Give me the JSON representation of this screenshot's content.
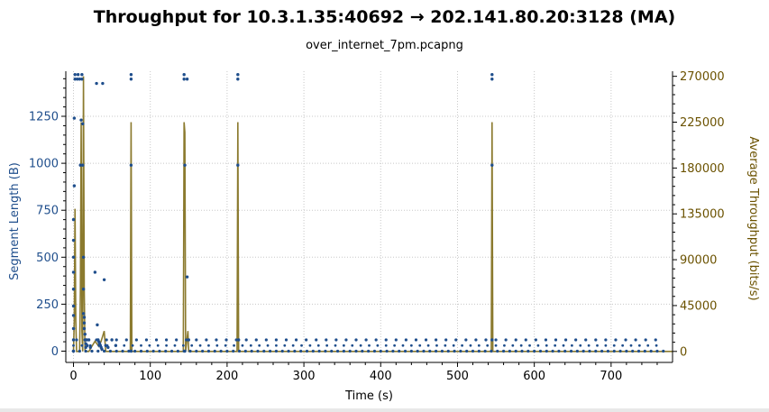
{
  "chart_data": {
    "type": "scatter",
    "title": "Throughput for 10.3.1.35:40692 → 202.141.80.20:3128 (MA)",
    "subtitle": "over_internet_7pm.pcapng",
    "xlabel": "Time (s)",
    "ylabel_left": "Segment Length (B)",
    "ylabel_right": "Average Throughput (bits/s)",
    "xlim": [
      -10,
      780
    ],
    "ylim_left": [
      -60,
      1490
    ],
    "ylim_right": [
      -10800,
      275000
    ],
    "x_ticks": [
      0,
      100,
      200,
      300,
      400,
      500,
      600,
      700
    ],
    "y_left_ticks": [
      0,
      250,
      500,
      750,
      1000,
      1250
    ],
    "y_right_ticks": [
      0,
      45000,
      90000,
      135000,
      180000,
      225000,
      270000
    ],
    "grid": true,
    "colors": {
      "segments": "#1f4e8c",
      "throughput": "#8b7a2e"
    },
    "series": [
      {
        "kind": "segments",
        "axis": "left",
        "points": [
          [
            0,
            0
          ],
          [
            0,
            60
          ],
          [
            0,
            120
          ],
          [
            0,
            190
          ],
          [
            0,
            240
          ],
          [
            0,
            330
          ],
          [
            0,
            420
          ],
          [
            0,
            500
          ],
          [
            0,
            590
          ],
          [
            0,
            700
          ],
          [
            1,
            880
          ],
          [
            1,
            1240
          ],
          [
            2,
            1448
          ],
          [
            2,
            1472
          ],
          [
            5,
            1448
          ],
          [
            6,
            1472
          ],
          [
            8,
            1448
          ],
          [
            9,
            990
          ],
          [
            10,
            1230
          ],
          [
            11,
            1448
          ],
          [
            11,
            1472
          ],
          [
            12,
            990
          ],
          [
            12,
            1210
          ],
          [
            13,
            500
          ],
          [
            13,
            330
          ],
          [
            13,
            200
          ],
          [
            14,
            180
          ],
          [
            14,
            150
          ],
          [
            14,
            120
          ],
          [
            15,
            90
          ],
          [
            15,
            60
          ],
          [
            16,
            40
          ],
          [
            16,
            20
          ],
          [
            17,
            60
          ],
          [
            18,
            30
          ],
          [
            20,
            60
          ],
          [
            22,
            20
          ],
          [
            28,
            420
          ],
          [
            30,
            1425
          ],
          [
            31,
            140
          ],
          [
            32,
            60
          ],
          [
            33,
            50
          ],
          [
            34,
            40
          ],
          [
            35,
            30
          ],
          [
            36,
            20
          ],
          [
            37,
            10
          ],
          [
            38,
            1425
          ],
          [
            40,
            380
          ],
          [
            42,
            30
          ],
          [
            45,
            20
          ],
          [
            50,
            60
          ],
          [
            55,
            30
          ],
          [
            75,
            1448
          ],
          [
            75,
            1472
          ],
          [
            75,
            990
          ],
          [
            75,
            0
          ],
          [
            144,
            1448
          ],
          [
            144,
            1472
          ],
          [
            148,
            1448
          ],
          [
            145,
            990
          ],
          [
            148,
            395
          ],
          [
            145,
            0
          ],
          [
            150,
            60
          ],
          [
            214,
            1448
          ],
          [
            214,
            1472
          ],
          [
            214,
            990
          ],
          [
            215,
            60
          ],
          [
            545,
            1448
          ],
          [
            545,
            1472
          ],
          [
            545,
            990
          ],
          [
            545,
            60
          ]
        ]
      },
      {
        "kind": "throughput",
        "axis": "right",
        "points": [
          [
            0,
            0
          ],
          [
            1,
            30000
          ],
          [
            2,
            140000
          ],
          [
            3,
            30000
          ],
          [
            4,
            0
          ],
          [
            8,
            0
          ],
          [
            9,
            60000
          ],
          [
            10,
            225000
          ],
          [
            11,
            20000
          ],
          [
            12,
            0
          ],
          [
            13,
            270000
          ],
          [
            14,
            60000
          ],
          [
            15,
            0
          ],
          [
            20,
            0
          ],
          [
            24,
            5000
          ],
          [
            28,
            10000
          ],
          [
            33,
            5000
          ],
          [
            36,
            10000
          ],
          [
            40,
            20000
          ],
          [
            42,
            0
          ],
          [
            74,
            0
          ],
          [
            75,
            225000
          ],
          [
            76,
            0
          ],
          [
            143,
            0
          ],
          [
            144,
            225000
          ],
          [
            145,
            215000
          ],
          [
            146,
            0
          ],
          [
            149,
            20000
          ],
          [
            150,
            0
          ],
          [
            213,
            0
          ],
          [
            214,
            225000
          ],
          [
            215,
            0
          ],
          [
            544,
            0
          ],
          [
            545,
            225000
          ],
          [
            546,
            0
          ],
          [
            780,
            0
          ]
        ]
      }
    ]
  }
}
